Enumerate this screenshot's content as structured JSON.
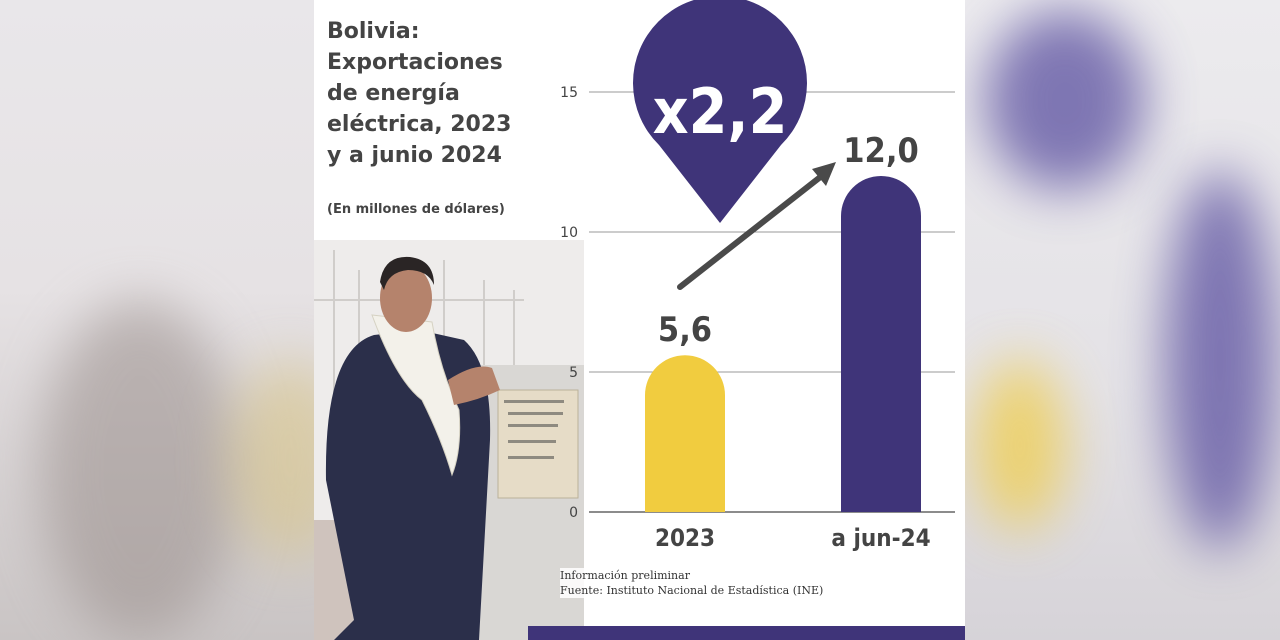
{
  "title_lines": [
    "Bolivia:",
    "Exportaciones",
    "de energía",
    "eléctrica, 2023",
    "y a junio 2024"
  ],
  "subtitle": "(En millones de dólares)",
  "badge_text": "x2,2",
  "notes": [
    "Información preliminar",
    "Fuente: Instituto Nacional de Estadística (INE)"
  ],
  "colors": {
    "bar_2023": "#f1cc3f",
    "bar_2024": "#3f3479",
    "badge": "#3f3479",
    "arrow": "#4a4a4a",
    "text": "#444444"
  },
  "chart_data": {
    "type": "bar",
    "categories": [
      "2023",
      "a jun-24"
    ],
    "values": [
      5.6,
      12.0
    ],
    "value_labels": [
      "5,6",
      "12,0"
    ],
    "yticks": [
      0,
      5,
      10,
      15
    ],
    "ylim": [
      0,
      15
    ],
    "grid": true,
    "annotation": "x2,2"
  }
}
